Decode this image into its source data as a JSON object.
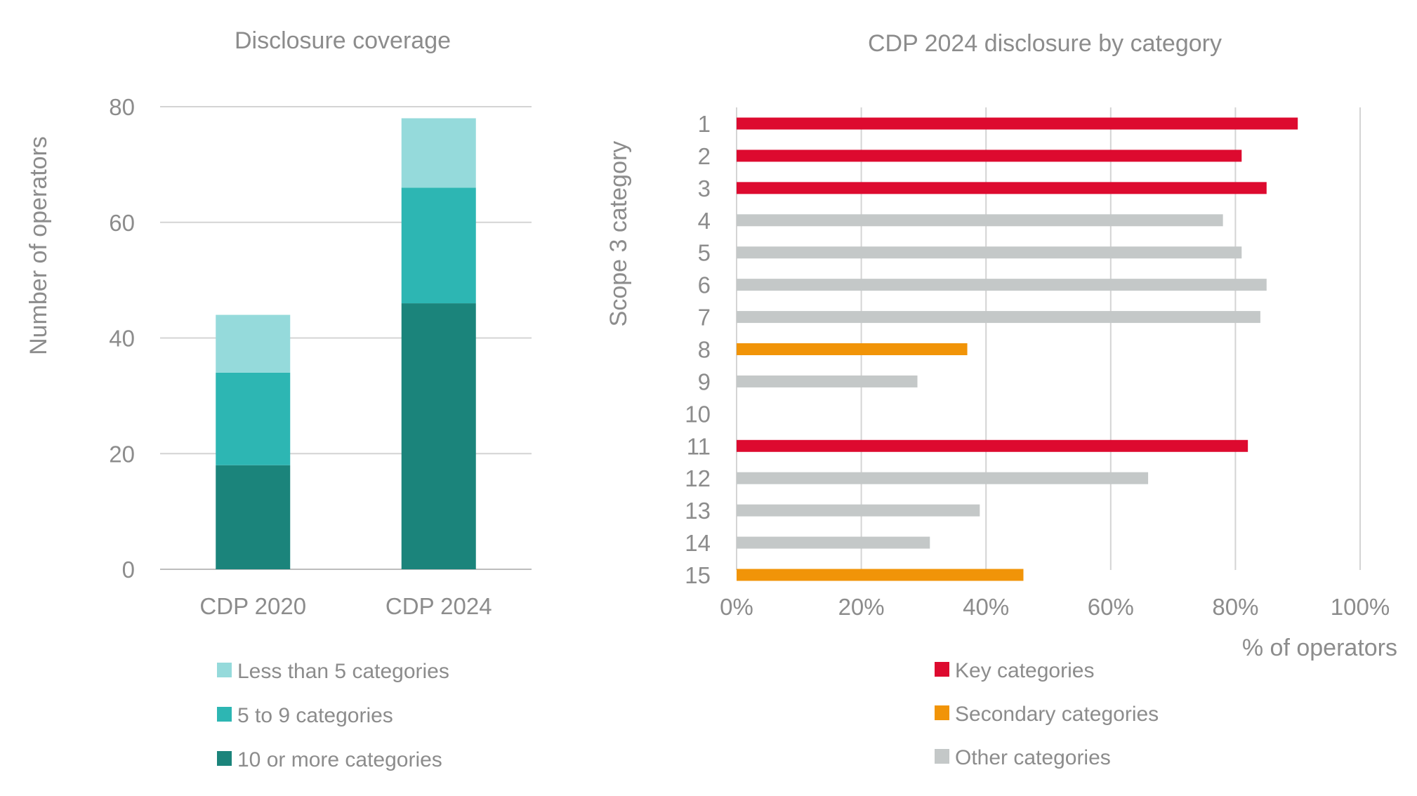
{
  "chart_data": [
    {
      "type": "bar",
      "stacked": true,
      "title": "Disclosure coverage",
      "ylabel": "Number of operators",
      "xlabel": "",
      "categories": [
        "CDP 2020",
        "CDP 2024"
      ],
      "ylim": [
        0,
        80
      ],
      "yticks": [
        "0",
        "20",
        "40",
        "60",
        "80"
      ],
      "grid": true,
      "legend_position": "bottom",
      "series": [
        {
          "name": "10 or more categories",
          "color": "#1b847b",
          "values": [
            18,
            46
          ]
        },
        {
          "name": "5 to 9 categories",
          "color": "#2db6b3",
          "values": [
            16,
            20
          ]
        },
        {
          "name": "Less than 5 categories",
          "color": "#95dadb",
          "values": [
            10,
            12
          ]
        }
      ]
    },
    {
      "type": "bar",
      "orientation": "horizontal",
      "title": "CDP 2024 disclosure by category",
      "ylabel": "Scope 3 category",
      "xlabel": "% of operators",
      "categories": [
        "1",
        "2",
        "3",
        "4",
        "5",
        "6",
        "7",
        "8",
        "9",
        "10",
        "11",
        "12",
        "13",
        "14",
        "15"
      ],
      "values": [
        90,
        81,
        85,
        78,
        81,
        85,
        84,
        37,
        29,
        0,
        82,
        66,
        39,
        31,
        46
      ],
      "groups": [
        "key",
        "key",
        "key",
        "other",
        "other",
        "other",
        "other",
        "secondary",
        "other",
        "other",
        "key",
        "other",
        "other",
        "other",
        "secondary"
      ],
      "xlim": [
        0,
        100
      ],
      "xticks": [
        "0%",
        "20%",
        "40%",
        "60%",
        "80%",
        "100%"
      ],
      "grid": true,
      "legend_position": "bottom",
      "legend": [
        {
          "key": "key",
          "name": "Key categories",
          "color": "#dd0a2f"
        },
        {
          "key": "secondary",
          "name": "Secondary categories",
          "color": "#f19408"
        },
        {
          "key": "other",
          "name": "Other categories",
          "color": "#c4c8c8"
        }
      ]
    }
  ]
}
